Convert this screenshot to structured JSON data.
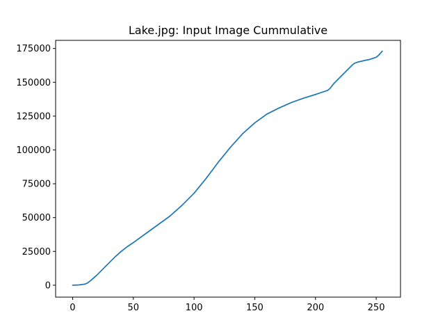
{
  "chart_data": {
    "type": "line",
    "title": "Lake.jpg: Input Image Cummulative",
    "xlabel": "",
    "ylabel": "",
    "xlim": [
      -14,
      270
    ],
    "ylim": [
      -8800,
      181000
    ],
    "grid": false,
    "x_ticks": [
      {
        "value": 0,
        "label": "0"
      },
      {
        "value": 50,
        "label": "50"
      },
      {
        "value": 100,
        "label": "100"
      },
      {
        "value": 150,
        "label": "150"
      },
      {
        "value": 200,
        "label": "200"
      },
      {
        "value": 250,
        "label": "250"
      }
    ],
    "y_ticks": [
      {
        "value": 0,
        "label": "0"
      },
      {
        "value": 25000,
        "label": "25000"
      },
      {
        "value": 50000,
        "label": "50000"
      },
      {
        "value": 75000,
        "label": "75000"
      },
      {
        "value": 100000,
        "label": "100000"
      },
      {
        "value": 125000,
        "label": "125000"
      },
      {
        "value": 150000,
        "label": "150000"
      },
      {
        "value": 175000,
        "label": "175000"
      }
    ],
    "series": [
      {
        "color": "#1f77b4",
        "x": [
          0,
          5,
          10,
          12,
          15,
          20,
          25,
          30,
          35,
          40,
          45,
          50,
          60,
          70,
          80,
          90,
          100,
          110,
          120,
          130,
          140,
          150,
          160,
          170,
          180,
          190,
          200,
          205,
          210,
          212,
          215,
          220,
          225,
          230,
          232,
          235,
          240,
          245,
          250,
          252,
          255
        ],
        "y": [
          0,
          200,
          800,
          1500,
          3500,
          7500,
          12000,
          16500,
          21000,
          25000,
          28500,
          31500,
          38000,
          44500,
          51000,
          59000,
          68000,
          79000,
          91000,
          102000,
          112000,
          120000,
          126500,
          131000,
          135000,
          138200,
          141000,
          142500,
          144000,
          145500,
          149000,
          153500,
          158000,
          162500,
          164000,
          165000,
          166000,
          167000,
          168500,
          170000,
          173000
        ]
      }
    ]
  }
}
